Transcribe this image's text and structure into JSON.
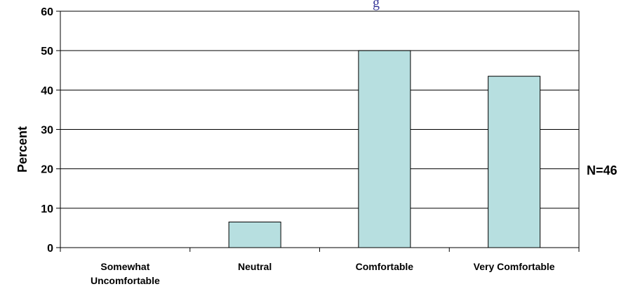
{
  "chart_data": {
    "type": "bar",
    "title_fragment": "g",
    "ylabel": "Percent",
    "xlabel": "",
    "categories": [
      [
        "Somewhat",
        "Uncomfortable"
      ],
      [
        "Neutral"
      ],
      [
        "Comfortable"
      ],
      [
        "Very Comfortable"
      ]
    ],
    "values": [
      0,
      6.5,
      50,
      43.5
    ],
    "ylim": [
      0,
      60
    ],
    "yticks": [
      0,
      10,
      20,
      30,
      40,
      50,
      60
    ],
    "grid": true,
    "annotation": "N=46",
    "colors": {
      "bar_fill": "#b7dfe0",
      "bar_stroke": "#000000",
      "grid": "#000000",
      "axis": "#000000",
      "title_fragment": "#3a3a9a"
    }
  }
}
